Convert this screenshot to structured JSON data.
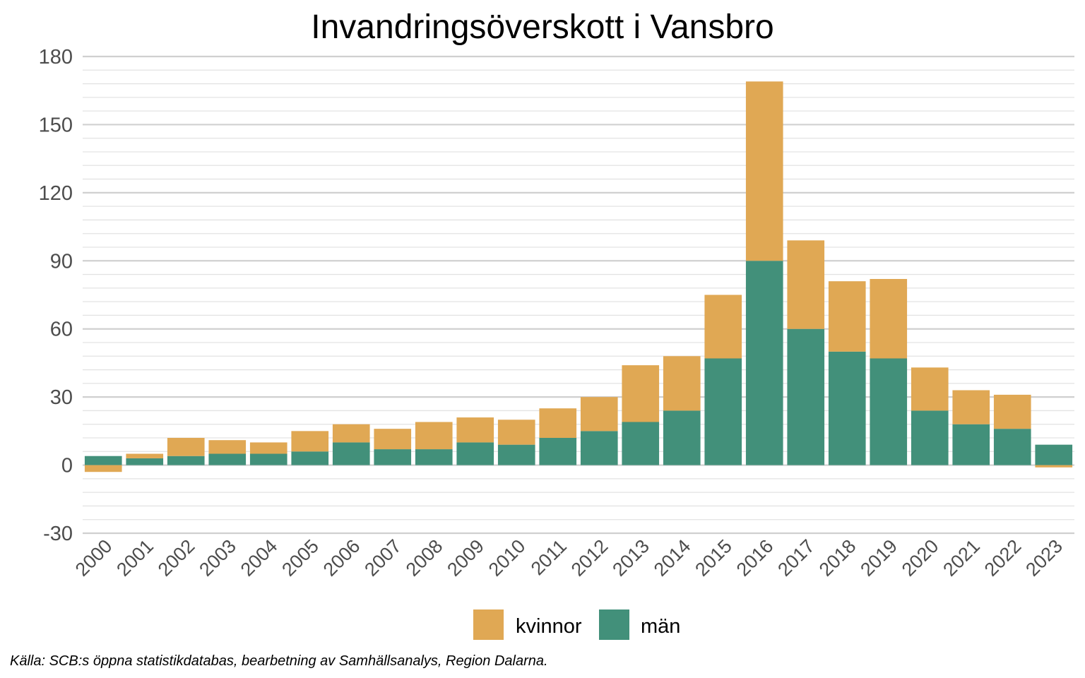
{
  "chart_data": {
    "type": "bar",
    "stacked": true,
    "title": "Invandringsöverskott i Vansbro",
    "xlabel": "",
    "ylabel": "",
    "ylim": [
      -30,
      180
    ],
    "y_ticks": [
      -30,
      0,
      30,
      60,
      90,
      120,
      150,
      180
    ],
    "grid": true,
    "legend_position": "bottom",
    "categories": [
      "2000",
      "2001",
      "2002",
      "2003",
      "2004",
      "2005",
      "2006",
      "2007",
      "2008",
      "2009",
      "2010",
      "2011",
      "2012",
      "2013",
      "2014",
      "2015",
      "2016",
      "2017",
      "2018",
      "2019",
      "2020",
      "2021",
      "2022",
      "2023"
    ],
    "series": [
      {
        "name": "män",
        "color": "#42907a",
        "values": [
          4,
          3,
          4,
          5,
          5,
          6,
          10,
          7,
          7,
          10,
          9,
          12,
          15,
          19,
          24,
          47,
          90,
          60,
          50,
          47,
          24,
          18,
          16,
          9
        ]
      },
      {
        "name": "kvinnor",
        "color": "#e0a854",
        "values": [
          -3,
          2,
          8,
          6,
          5,
          9,
          8,
          9,
          12,
          11,
          11,
          13,
          15,
          25,
          24,
          28,
          79,
          39,
          31,
          35,
          19,
          15,
          15,
          -1
        ]
      }
    ],
    "legend": [
      {
        "label": "kvinnor",
        "color": "#e0a854"
      },
      {
        "label": "män",
        "color": "#42907a"
      }
    ]
  },
  "source": "Källa: SCB:s öppna statistikdatabas, bearbetning av Samhällsanalys, Region Dalarna."
}
